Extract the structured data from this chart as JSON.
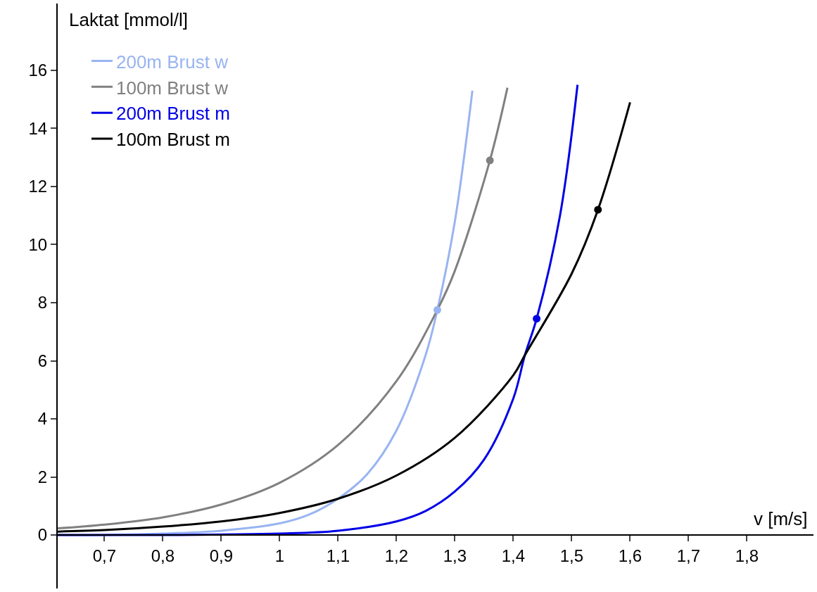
{
  "chart_data": {
    "type": "line",
    "xlabel": "v [m/s]",
    "ylabel": "Laktat [mmol/l]",
    "xlim": [
      0.62,
      1.914
    ],
    "ylim": [
      -1.84,
      18.3
    ],
    "xticks": [
      {
        "value": 0.7,
        "label": "0,7"
      },
      {
        "value": 0.8,
        "label": "0,8"
      },
      {
        "value": 0.9,
        "label": "0,9"
      },
      1,
      {
        "value": 1.1,
        "label": "1,1"
      },
      {
        "value": 1.2,
        "label": "1,2"
      },
      {
        "value": 1.3,
        "label": "1,3"
      },
      {
        "value": 1.4,
        "label": "1,4"
      },
      {
        "value": 1.5,
        "label": "1,5"
      },
      {
        "value": 1.6,
        "label": "1,6"
      },
      {
        "value": 1.7,
        "label": "1,7"
      },
      {
        "value": 1.8,
        "label": "1,8"
      }
    ],
    "yticks": [
      0,
      2,
      4,
      6,
      8,
      10,
      12,
      14,
      16
    ],
    "grid": false,
    "legend": "top left",
    "line_style": "solid",
    "series": [
      {
        "name": "200m Brust w",
        "color": "#99b4f2",
        "x": [
          0.62,
          0.7,
          0.8,
          0.9,
          1.0,
          1.05,
          1.1,
          1.15,
          1.2,
          1.25,
          1.27,
          1.3,
          1.33
        ],
        "values": [
          0,
          0,
          0.05,
          0.15,
          0.4,
          0.7,
          1.25,
          2.1,
          3.6,
          6.2,
          7.75,
          10.8,
          15.3
        ]
      },
      {
        "name": "100m Brust w",
        "color": "#808080",
        "x": [
          0.62,
          0.7,
          0.8,
          0.9,
          1.0,
          1.1,
          1.2,
          1.27,
          1.3,
          1.36,
          1.39
        ],
        "values": [
          0.23,
          0.36,
          0.61,
          1.05,
          1.8,
          3.1,
          5.3,
          7.75,
          9.1,
          12.9,
          15.4
        ]
      },
      {
        "name": "200m Brust m",
        "color": "#0000e6",
        "x": [
          0.62,
          0.8,
          1.0,
          1.1,
          1.2,
          1.25,
          1.3,
          1.35,
          1.4,
          1.42,
          1.44,
          1.48,
          1.51
        ],
        "values": [
          0,
          0,
          0.05,
          0.15,
          0.47,
          0.83,
          1.5,
          2.6,
          4.7,
          6.2,
          7.45,
          11,
          15.5
        ]
      },
      {
        "name": "100m Brust m",
        "color": "#000000",
        "x": [
          0.62,
          0.7,
          0.8,
          0.9,
          1.0,
          1.1,
          1.2,
          1.3,
          1.4,
          1.42,
          1.5,
          1.545,
          1.6
        ],
        "values": [
          0.12,
          0.17,
          0.29,
          0.47,
          0.76,
          1.25,
          2.05,
          3.35,
          5.5,
          6.2,
          9.0,
          11.2,
          14.9
        ]
      },
      {
        "type": "scatter",
        "color": "#99b4f2",
        "x": [
          1.27
        ],
        "values": [
          7.75
        ]
      },
      {
        "type": "scatter",
        "color": "#808080",
        "x": [
          1.36
        ],
        "values": [
          12.9
        ]
      },
      {
        "type": "scatter",
        "color": "#0000e6",
        "x": [
          1.44
        ],
        "values": [
          7.45
        ]
      },
      {
        "type": "scatter",
        "color": "#000000",
        "x": [
          1.545
        ],
        "values": [
          11.2
        ]
      }
    ]
  }
}
